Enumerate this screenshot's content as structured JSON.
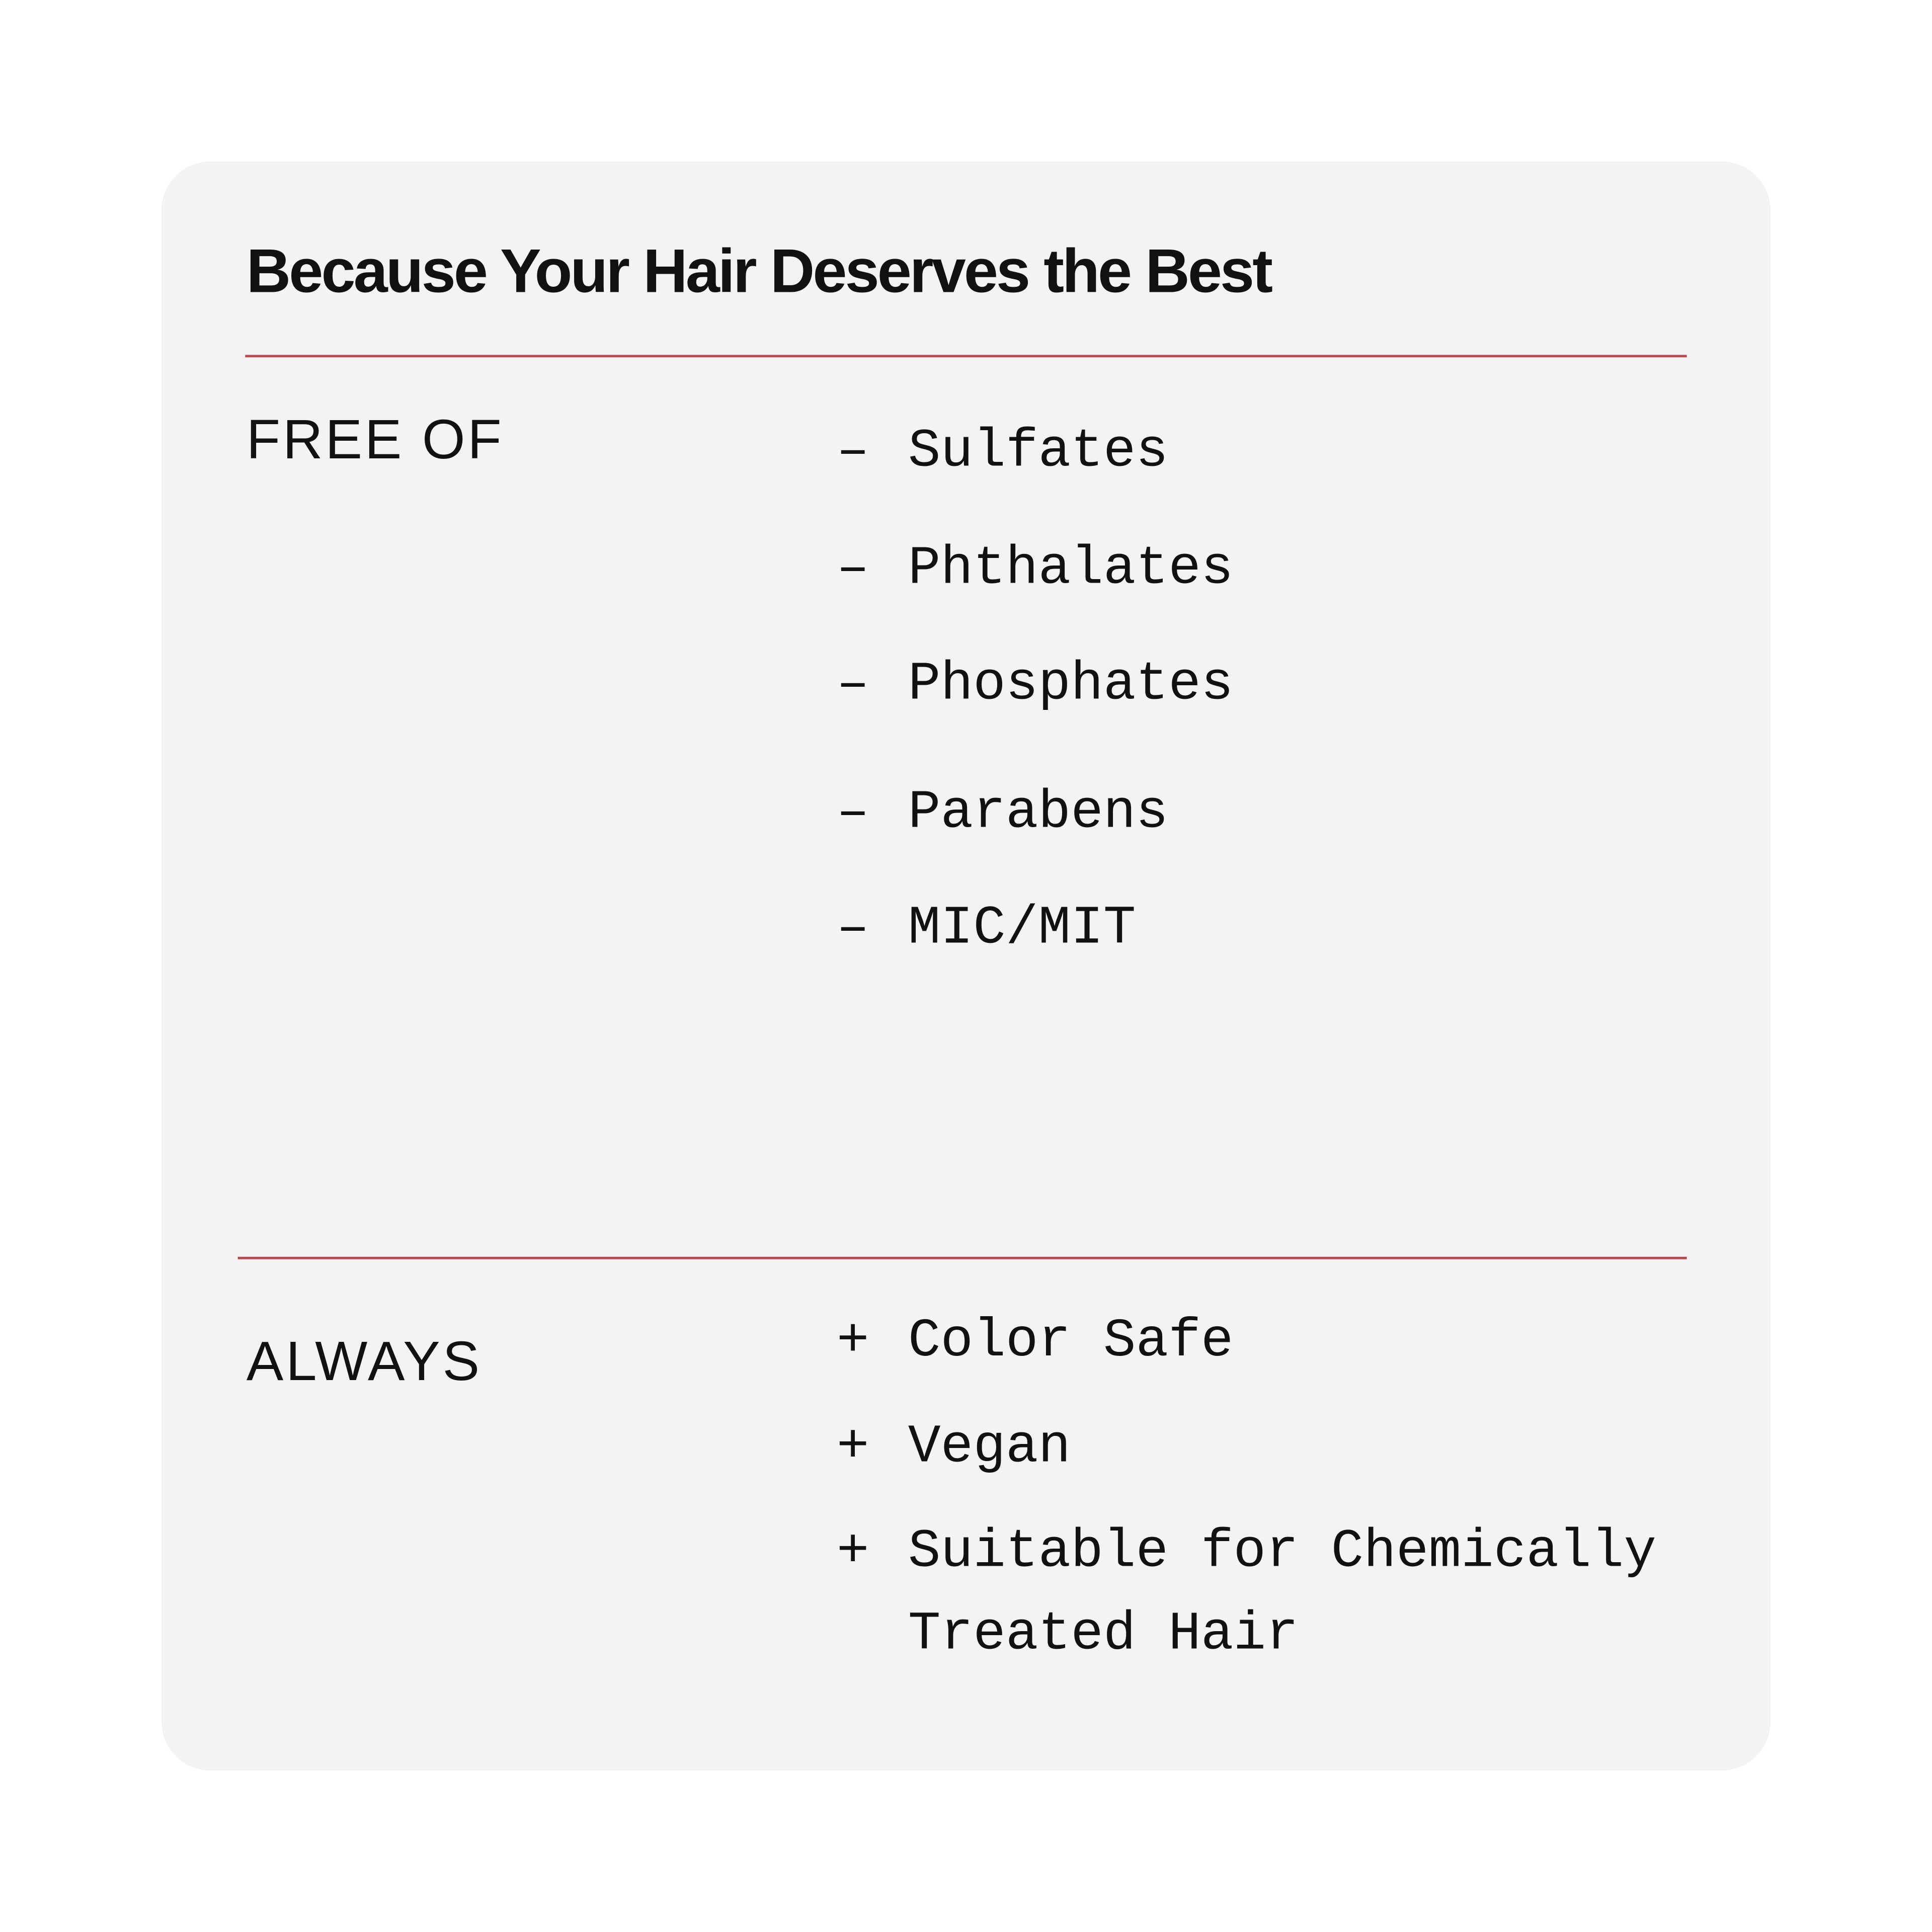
{
  "title": "Because Your Hair Deserves the Best",
  "accent_color": "#b94a53",
  "free_of": {
    "label": "FREE OF",
    "marker": "–",
    "items": [
      "Sulfates",
      "Phthalates",
      "Phosphates",
      "Parabens",
      "MIC/MIT"
    ]
  },
  "always": {
    "label": "ALWAYS",
    "marker": "+",
    "items": [
      "Color Safe",
      "Vegan",
      "Suitable for Chemically",
      "Treated Hair"
    ]
  }
}
